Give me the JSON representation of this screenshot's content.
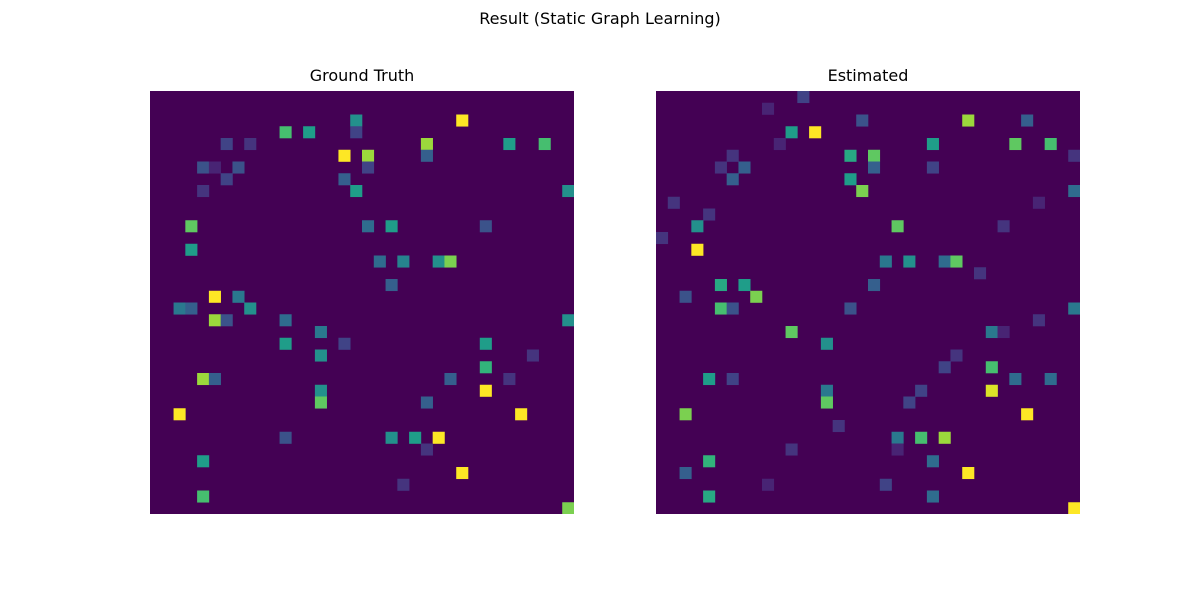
{
  "figure_title": "Result (Static Graph Learning)",
  "colors": {
    "colormap": "viridis",
    "background": "#440154",
    "low": "#46327e",
    "mid": "#21918c",
    "high": "#5ec962",
    "top": "#fde725"
  },
  "chart_data": [
    {
      "type": "heatmap",
      "title": "Ground Truth",
      "n": 36,
      "vmin": 0,
      "vmax": 1,
      "xlabel": "",
      "ylabel": "",
      "grid": false,
      "cells": [
        [
          2,
          17,
          0.5
        ],
        [
          2,
          26,
          1.0
        ],
        [
          3,
          11,
          0.7
        ],
        [
          3,
          13,
          0.55
        ],
        [
          3,
          17,
          0.2
        ],
        [
          4,
          6,
          0.2
        ],
        [
          4,
          8,
          0.15
        ],
        [
          4,
          23,
          0.85
        ],
        [
          4,
          30,
          0.55
        ],
        [
          4,
          33,
          0.7
        ],
        [
          5,
          16,
          1.0
        ],
        [
          5,
          18,
          0.85
        ],
        [
          5,
          23,
          0.3
        ],
        [
          6,
          4,
          0.25
        ],
        [
          6,
          5,
          0.1
        ],
        [
          6,
          7,
          0.25
        ],
        [
          6,
          18,
          0.2
        ],
        [
          7,
          6,
          0.2
        ],
        [
          7,
          16,
          0.3
        ],
        [
          8,
          4,
          0.15
        ],
        [
          8,
          17,
          0.55
        ],
        [
          8,
          35,
          0.5
        ],
        [
          11,
          3,
          0.75
        ],
        [
          11,
          18,
          0.35
        ],
        [
          11,
          20,
          0.55
        ],
        [
          11,
          28,
          0.25
        ],
        [
          13,
          3,
          0.55
        ],
        [
          14,
          19,
          0.35
        ],
        [
          14,
          21,
          0.45
        ],
        [
          14,
          24,
          0.5
        ],
        [
          14,
          25,
          0.8
        ],
        [
          16,
          20,
          0.3
        ],
        [
          17,
          5,
          1.0
        ],
        [
          17,
          7,
          0.4
        ],
        [
          18,
          2,
          0.4
        ],
        [
          18,
          3,
          0.3
        ],
        [
          18,
          8,
          0.5
        ],
        [
          19,
          5,
          0.85
        ],
        [
          19,
          6,
          0.25
        ],
        [
          19,
          11,
          0.35
        ],
        [
          19,
          35,
          0.5
        ],
        [
          20,
          14,
          0.4
        ],
        [
          21,
          11,
          0.55
        ],
        [
          21,
          16,
          0.2
        ],
        [
          21,
          28,
          0.55
        ],
        [
          22,
          14,
          0.5
        ],
        [
          22,
          32,
          0.15
        ],
        [
          23,
          28,
          0.65
        ],
        [
          24,
          4,
          0.85
        ],
        [
          24,
          5,
          0.3
        ],
        [
          24,
          25,
          0.3
        ],
        [
          24,
          30,
          0.15
        ],
        [
          25,
          14,
          0.5
        ],
        [
          25,
          28,
          1.0
        ],
        [
          26,
          14,
          0.75
        ],
        [
          26,
          23,
          0.3
        ],
        [
          27,
          2,
          1.0
        ],
        [
          27,
          31,
          1.0
        ],
        [
          29,
          11,
          0.25
        ],
        [
          29,
          20,
          0.5
        ],
        [
          29,
          22,
          0.55
        ],
        [
          29,
          24,
          1.0
        ],
        [
          30,
          23,
          0.15
        ],
        [
          31,
          4,
          0.55
        ],
        [
          32,
          26,
          1.0
        ],
        [
          33,
          21,
          0.15
        ],
        [
          34,
          4,
          0.7
        ],
        [
          35,
          35,
          0.8
        ],
        [
          36,
          8,
          0.45
        ],
        [
          36,
          18,
          0.5
        ],
        [
          36,
          34,
          0.8
        ]
      ]
    },
    {
      "type": "heatmap",
      "title": "Estimated",
      "n": 36,
      "vmin": 0,
      "vmax": 1,
      "xlabel": "",
      "ylabel": "",
      "grid": false,
      "cells": [
        [
          0,
          12,
          0.2
        ],
        [
          1,
          9,
          0.1
        ],
        [
          2,
          17,
          0.25
        ],
        [
          2,
          26,
          0.85
        ],
        [
          2,
          31,
          0.3
        ],
        [
          3,
          11,
          0.55
        ],
        [
          3,
          13,
          1.0
        ],
        [
          4,
          10,
          0.1
        ],
        [
          4,
          23,
          0.55
        ],
        [
          4,
          30,
          0.75
        ],
        [
          4,
          33,
          0.7
        ],
        [
          5,
          6,
          0.15
        ],
        [
          5,
          16,
          0.6
        ],
        [
          5,
          18,
          0.75
        ],
        [
          5,
          35,
          0.15
        ],
        [
          6,
          5,
          0.15
        ],
        [
          6,
          7,
          0.3
        ],
        [
          6,
          18,
          0.3
        ],
        [
          6,
          23,
          0.2
        ],
        [
          7,
          6,
          0.3
        ],
        [
          7,
          16,
          0.55
        ],
        [
          8,
          17,
          0.8
        ],
        [
          8,
          35,
          0.35
        ],
        [
          9,
          1,
          0.15
        ],
        [
          9,
          32,
          0.1
        ],
        [
          10,
          4,
          0.15
        ],
        [
          11,
          3,
          0.5
        ],
        [
          11,
          20,
          0.75
        ],
        [
          11,
          29,
          0.15
        ],
        [
          12,
          0,
          0.15
        ],
        [
          13,
          3,
          1.0
        ],
        [
          14,
          19,
          0.4
        ],
        [
          14,
          21,
          0.5
        ],
        [
          14,
          24,
          0.35
        ],
        [
          14,
          25,
          0.75
        ],
        [
          15,
          27,
          0.15
        ],
        [
          16,
          5,
          0.6
        ],
        [
          16,
          7,
          0.55
        ],
        [
          16,
          18,
          0.3
        ],
        [
          17,
          2,
          0.25
        ],
        [
          17,
          8,
          0.8
        ],
        [
          18,
          5,
          0.7
        ],
        [
          18,
          6,
          0.25
        ],
        [
          18,
          16,
          0.25
        ],
        [
          18,
          35,
          0.4
        ],
        [
          19,
          32,
          0.15
        ],
        [
          20,
          11,
          0.75
        ],
        [
          20,
          28,
          0.4
        ],
        [
          20,
          29,
          0.1
        ],
        [
          21,
          14,
          0.5
        ],
        [
          22,
          25,
          0.15
        ],
        [
          23,
          24,
          0.2
        ],
        [
          23,
          28,
          0.7
        ],
        [
          24,
          4,
          0.55
        ],
        [
          24,
          6,
          0.2
        ],
        [
          24,
          30,
          0.35
        ],
        [
          24,
          33,
          0.35
        ],
        [
          25,
          14,
          0.4
        ],
        [
          25,
          22,
          0.2
        ],
        [
          25,
          28,
          0.95
        ],
        [
          26,
          14,
          0.75
        ],
        [
          26,
          21,
          0.2
        ],
        [
          27,
          2,
          0.8
        ],
        [
          27,
          31,
          1.0
        ],
        [
          28,
          15,
          0.15
        ],
        [
          29,
          20,
          0.4
        ],
        [
          29,
          22,
          0.7
        ],
        [
          29,
          24,
          0.85
        ],
        [
          30,
          11,
          0.15
        ],
        [
          30,
          20,
          0.1
        ],
        [
          31,
          4,
          0.65
        ],
        [
          31,
          23,
          0.35
        ],
        [
          32,
          2,
          0.3
        ],
        [
          32,
          26,
          1.0
        ],
        [
          33,
          9,
          0.1
        ],
        [
          33,
          19,
          0.2
        ],
        [
          34,
          4,
          0.6
        ],
        [
          34,
          23,
          0.35
        ],
        [
          35,
          35,
          1.0
        ],
        [
          36,
          5,
          0.15
        ],
        [
          36,
          8,
          0.35
        ],
        [
          36,
          18,
          0.4
        ],
        [
          36,
          34,
          1.0
        ]
      ]
    }
  ]
}
